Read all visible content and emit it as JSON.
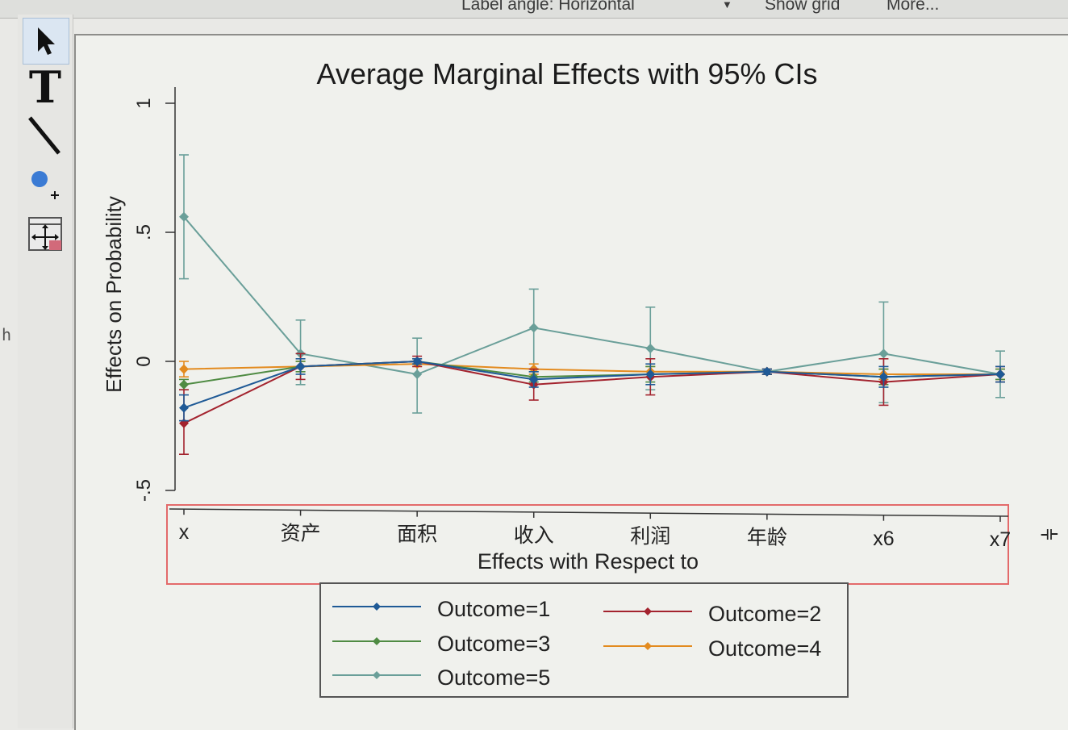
{
  "topbar": {
    "label_angle": "Label angle: Horizontal",
    "show_grid": "Show grid",
    "more": "More..."
  },
  "toolbar": {
    "items": [
      {
        "name": "pointer-tool",
        "icon": "arrow-pointer-icon"
      },
      {
        "name": "text-tool",
        "icon": "text-T-icon",
        "glyph": "T"
      },
      {
        "name": "line-tool",
        "icon": "line-icon"
      },
      {
        "name": "marker-tool",
        "icon": "add-marker-icon"
      },
      {
        "name": "move-tool",
        "icon": "move-icon"
      }
    ]
  },
  "sidebar_fragment": "h",
  "colors": {
    "outcome1": "#1f5a96",
    "outcome2": "#a3232e",
    "outcome3": "#4f8b43",
    "outcome4": "#e38b1f",
    "outcome5": "#6a9f99",
    "axis": "#333333",
    "selection": "#e36a6a"
  },
  "chart_data": {
    "type": "line",
    "title": "Average Marginal Effects with 95% CIs",
    "xlabel": "Effects with Respect to",
    "ylabel": "Effects on Probability",
    "categories": [
      "x",
      "资产",
      "面积",
      "收入",
      "利润",
      "年龄",
      "x6",
      "x7"
    ],
    "yticks": [
      -0.5,
      0,
      0.5,
      1
    ],
    "ytick_labels": [
      "-.5",
      "0",
      ".5",
      "1"
    ],
    "ylim": [
      -0.56,
      1.08
    ],
    "grid": false,
    "legend_position": "bottom",
    "series": [
      {
        "name": "Outcome=1",
        "color": "#1f5a96",
        "values": [
          -0.18,
          -0.02,
          0.0,
          -0.07,
          -0.05,
          -0.04,
          -0.06,
          -0.05
        ],
        "lower": [
          -0.23,
          -0.05,
          -0.01,
          -0.1,
          -0.09,
          -0.05,
          -0.1,
          -0.08
        ],
        "upper": [
          -0.13,
          0.01,
          0.01,
          -0.04,
          -0.01,
          -0.03,
          -0.02,
          -0.02
        ]
      },
      {
        "name": "Outcome=2",
        "color": "#a3232e",
        "values": [
          -0.24,
          -0.02,
          0.0,
          -0.09,
          -0.06,
          -0.04,
          -0.08,
          -0.05
        ],
        "lower": [
          -0.36,
          -0.07,
          -0.02,
          -0.15,
          -0.13,
          -0.05,
          -0.17,
          -0.08
        ],
        "upper": [
          -0.11,
          0.03,
          0.02,
          -0.03,
          0.01,
          -0.03,
          0.01,
          -0.02
        ]
      },
      {
        "name": "Outcome=3",
        "color": "#4f8b43",
        "values": [
          -0.09,
          -0.02,
          0.0,
          -0.06,
          -0.05,
          -0.04,
          -0.06,
          -0.05
        ],
        "lower": [
          -0.11,
          -0.04,
          -0.01,
          -0.08,
          -0.08,
          -0.05,
          -0.09,
          -0.07
        ],
        "upper": [
          -0.07,
          0.0,
          0.01,
          -0.04,
          -0.02,
          -0.03,
          -0.03,
          -0.03
        ]
      },
      {
        "name": "Outcome=4",
        "color": "#e38b1f",
        "values": [
          -0.03,
          -0.02,
          -0.01,
          -0.03,
          -0.04,
          -0.04,
          -0.05,
          -0.05
        ],
        "lower": [
          -0.06,
          -0.04,
          -0.02,
          -0.05,
          -0.06,
          -0.05,
          -0.07,
          -0.07
        ],
        "upper": [
          0.0,
          0.0,
          0.0,
          -0.01,
          -0.02,
          -0.03,
          -0.03,
          -0.03
        ]
      },
      {
        "name": "Outcome=5",
        "color": "#6a9f99",
        "values": [
          0.56,
          0.03,
          -0.05,
          0.13,
          0.05,
          -0.04,
          0.03,
          -0.05
        ],
        "lower": [
          0.32,
          -0.09,
          -0.2,
          -0.06,
          -0.11,
          -0.05,
          -0.16,
          -0.14
        ],
        "upper": [
          0.8,
          0.16,
          0.09,
          0.28,
          0.21,
          -0.03,
          0.23,
          0.04
        ]
      }
    ]
  }
}
